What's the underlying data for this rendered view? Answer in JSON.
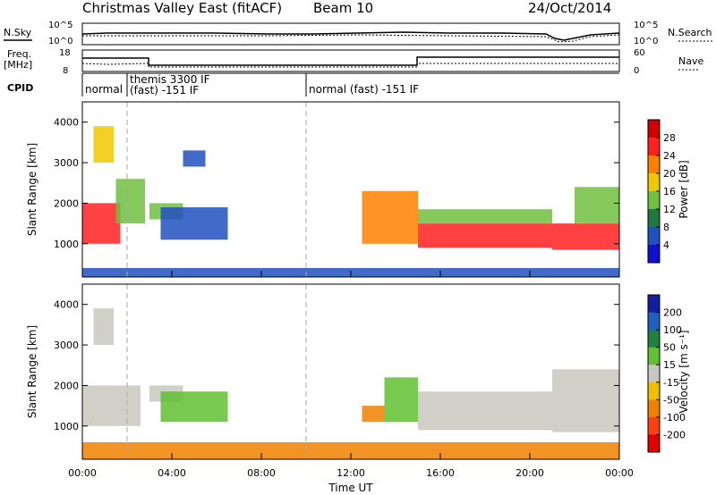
{
  "header": {
    "title": "Christmas Valley East (fitACF)",
    "beam": "Beam 10",
    "date": "24/Oct/2014"
  },
  "noise_panel": {
    "left_label": "N.Sky",
    "right_label": "N.Search",
    "left_ticks": [
      "10^5",
      "10^0"
    ],
    "right_ticks": [
      "10^5",
      "10^0"
    ]
  },
  "freq_panel": {
    "left_label_line1": "Freq.",
    "left_label_line2": "[MHz]",
    "right_label": "Nave",
    "left_ticks": [
      "18",
      "8"
    ],
    "right_ticks": [
      "60",
      "0"
    ]
  },
  "cpid": {
    "label": "CPID",
    "segments": [
      {
        "start_hour": 0.0,
        "text": "normal"
      },
      {
        "start_hour": 2.0,
        "text": "themis 3300 IF",
        "text2": "(fast) -151 IF"
      },
      {
        "start_hour": 10.0,
        "text": "normal (fast) -151 IF"
      }
    ]
  },
  "axes": {
    "x_ticks": [
      "00:00",
      "04:00",
      "08:00",
      "12:00",
      "16:00",
      "20:00",
      "00:00"
    ],
    "x_label": "Time UT",
    "y_label": "Slant Range [km]",
    "y_ticks": [
      "1000",
      "2000",
      "3000",
      "4000"
    ]
  },
  "colorbars": {
    "power": {
      "label": "Power [dB]",
      "ticks": [
        "28",
        "24",
        "20",
        "16",
        "12",
        "8",
        "4"
      ],
      "colors": [
        "#d00000",
        "#ff2020",
        "#ff8000",
        "#f0c800",
        "#70c040",
        "#207840",
        "#2050c0",
        "#1010d0"
      ]
    },
    "velocity": {
      "label": "Velocity [m s⁻¹]",
      "ticks": [
        "200",
        "100",
        "50",
        "15",
        "-15",
        "-50",
        "-100",
        "-200"
      ],
      "colors": [
        "#1020a0",
        "#2060c0",
        "#208040",
        "#60c030",
        "#c8c8c0",
        "#f0c000",
        "#f08000",
        "#ff4010",
        "#e00000"
      ]
    }
  },
  "chart_data": [
    {
      "type": "heatmap",
      "title": "Power [dB]",
      "xlabel": "",
      "ylabel": "Slant Range [km]",
      "xlim": [
        0,
        24
      ],
      "ylim": [
        180,
        4500
      ],
      "regions": [
        {
          "t0": 0.0,
          "t1": 1.7,
          "r0": 1000,
          "r1": 2000,
          "value": 24
        },
        {
          "t0": 0.5,
          "t1": 1.4,
          "r0": 3000,
          "r1": 3900,
          "value": 18
        },
        {
          "t0": 1.5,
          "t1": 2.8,
          "r0": 1500,
          "r1": 2600,
          "value": 14
        },
        {
          "t0": 3.0,
          "t1": 4.5,
          "r0": 1600,
          "r1": 2000,
          "value": 12
        },
        {
          "t0": 3.5,
          "t1": 6.5,
          "r0": 1100,
          "r1": 1900,
          "value": 6
        },
        {
          "t0": 4.5,
          "t1": 5.5,
          "r0": 2900,
          "r1": 3300,
          "value": 6
        },
        {
          "t0": 12.5,
          "t1": 15.0,
          "r0": 1000,
          "r1": 2300,
          "value": 20
        },
        {
          "t0": 15.0,
          "t1": 21.0,
          "r0": 900,
          "r1": 1500,
          "value": 26
        },
        {
          "t0": 15.0,
          "t1": 21.0,
          "r0": 1500,
          "r1": 1850,
          "value": 12
        },
        {
          "t0": 21.0,
          "t1": 24.0,
          "r0": 850,
          "r1": 1500,
          "value": 26
        },
        {
          "t0": 22.0,
          "t1": 24.0,
          "r0": 1500,
          "r1": 2400,
          "value": 14
        },
        {
          "t0": 0.0,
          "t1": 24.0,
          "r0": 180,
          "r1": 400,
          "value": 6
        }
      ]
    },
    {
      "type": "heatmap",
      "title": "Velocity [m s⁻¹]",
      "xlabel": "Time UT",
      "ylabel": "Slant Range [km]",
      "xlim": [
        0,
        24
      ],
      "ylim": [
        180,
        4500
      ],
      "regions": [
        {
          "t0": 0.0,
          "t1": 2.6,
          "r0": 1000,
          "r1": 2000,
          "value": 0
        },
        {
          "t0": 0.5,
          "t1": 1.4,
          "r0": 3000,
          "r1": 3900,
          "value": 0
        },
        {
          "t0": 3.0,
          "t1": 4.5,
          "r0": 1600,
          "r1": 2000,
          "value": 0
        },
        {
          "t0": 3.5,
          "t1": 6.5,
          "r0": 1100,
          "r1": 1850,
          "value": 30
        },
        {
          "t0": 12.5,
          "t1": 13.5,
          "r0": 1100,
          "r1": 1500,
          "value": -60
        },
        {
          "t0": 13.5,
          "t1": 15.0,
          "r0": 1100,
          "r1": 2200,
          "value": 30
        },
        {
          "t0": 15.0,
          "t1": 21.0,
          "r0": 900,
          "r1": 1850,
          "value": 0
        },
        {
          "t0": 21.0,
          "t1": 24.0,
          "r0": 850,
          "r1": 2400,
          "value": 0
        },
        {
          "t0": 0.0,
          "t1": 24.0,
          "r0": 180,
          "r1": 600,
          "value": -40
        }
      ]
    }
  ]
}
